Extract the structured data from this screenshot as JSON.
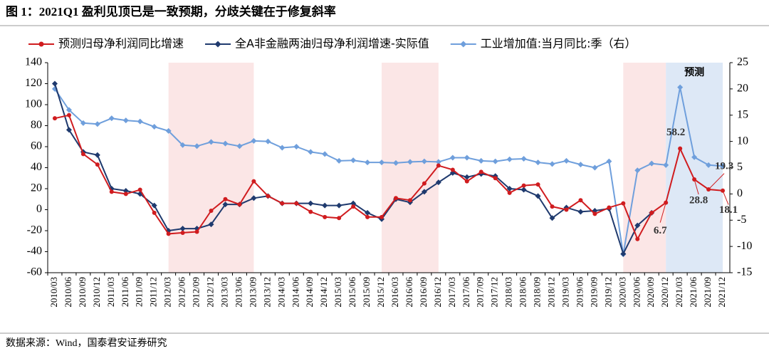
{
  "chart_data": {
    "type": "line",
    "title": "图 1：2021Q1 盈利见顶已是一致预期，分歧关键在于修复斜率",
    "source": "数据来源：Wind，国泰君安证券研究",
    "categories": [
      "2010/03",
      "2010/06",
      "2010/09",
      "2010/12",
      "2011/03",
      "2011/06",
      "2011/09",
      "2011/12",
      "2012/03",
      "2012/06",
      "2012/09",
      "2012/12",
      "2013/03",
      "2013/06",
      "2013/09",
      "2013/12",
      "2014/03",
      "2014/06",
      "2014/09",
      "2014/12",
      "2015/03",
      "2015/06",
      "2015/09",
      "2015/12",
      "2016/03",
      "2016/06",
      "2016/09",
      "2016/12",
      "2017/03",
      "2017/06",
      "2017/09",
      "2017/12",
      "2018/03",
      "2018/06",
      "2018/09",
      "2018/12",
      "2019/03",
      "2019/06",
      "2019/09",
      "2019/12",
      "2020/03",
      "2020/06",
      "2020/09",
      "2020/12",
      "2021/03",
      "2021/06",
      "2021/09",
      "2021/12"
    ],
    "series": [
      {
        "name": "预测归母净利润同比增速",
        "color": "#d01c1f",
        "marker": "circle",
        "axis": "y",
        "values": [
          87,
          90,
          53,
          43,
          17,
          15,
          19,
          -3,
          -23,
          -22,
          -21,
          -1,
          10,
          5,
          27,
          13,
          6,
          6,
          -2,
          -7,
          -8,
          3,
          -7,
          -7,
          11,
          9,
          25,
          42,
          38,
          27,
          36,
          30,
          16,
          23,
          24,
          3,
          0,
          9,
          -4,
          2,
          6,
          -28,
          -3,
          6.7,
          58.2,
          28.8,
          19.3,
          18.1
        ],
        "value_labels": [
          null,
          null,
          null,
          null,
          null,
          null,
          null,
          null,
          null,
          null,
          null,
          null,
          null,
          null,
          null,
          null,
          null,
          null,
          null,
          null,
          null,
          null,
          null,
          null,
          null,
          null,
          null,
          null,
          null,
          null,
          null,
          null,
          null,
          null,
          null,
          null,
          null,
          null,
          null,
          null,
          null,
          null,
          null,
          "6.7",
          "58.2",
          "28.8",
          "19.3",
          "18.1"
        ]
      },
      {
        "name": "全A非金融两油归母净利润增速-实际值",
        "color": "#1f3a6e",
        "marker": "diamond",
        "axis": "y",
        "values": [
          120,
          76,
          55,
          52,
          20,
          18,
          15,
          4,
          -20,
          -18,
          -18,
          -14,
          5,
          5,
          11,
          13,
          6,
          6,
          6,
          4,
          4,
          6,
          -3,
          -9,
          10,
          7,
          17,
          26,
          35,
          31,
          34,
          32,
          20,
          19,
          13,
          -8,
          2,
          -2,
          -1,
          1,
          -42,
          -15,
          -3,
          null,
          null,
          null,
          null,
          null
        ]
      },
      {
        "name": "工业增加值:当月同比:季（右）",
        "color": "#6f9fdc",
        "marker": "diamond",
        "axis": "y2",
        "values": [
          20,
          16,
          13.5,
          13.3,
          14.4,
          14,
          13.8,
          12.8,
          12,
          9.3,
          9.1,
          9.9,
          9.6,
          9.1,
          10.1,
          10,
          8.8,
          9,
          8,
          7.6,
          6.3,
          6.4,
          6,
          6,
          5.9,
          6.1,
          6.2,
          6.1,
          6.9,
          6.9,
          6.3,
          6.2,
          6.6,
          6.7,
          6,
          5.7,
          6.3,
          5.6,
          5,
          6.2,
          -11.5,
          4.5,
          5.8,
          5.5,
          20.3,
          7,
          5.5,
          5.3
        ]
      }
    ],
    "ylim": [
      -60,
      140
    ],
    "yticks": [
      -60,
      -40,
      -20,
      0,
      20,
      40,
      60,
      80,
      100,
      120,
      140
    ],
    "y2lim": [
      -15,
      25
    ],
    "y2ticks": [
      -15,
      -10,
      -5,
      0,
      5,
      10,
      15,
      20,
      25
    ],
    "shaded": [
      {
        "from": "2012/03",
        "to": "2013/09",
        "color": "#fbe6e6"
      },
      {
        "from": "2015/12",
        "to": "2016/12",
        "color": "#fbe6e6"
      },
      {
        "from": "2020/03",
        "to": "2020/12",
        "color": "#fbe6e6"
      },
      {
        "from": "2020/12",
        "to": "2021/12",
        "color": "#dde8f6",
        "label": "预测"
      }
    ],
    "grid": false
  }
}
